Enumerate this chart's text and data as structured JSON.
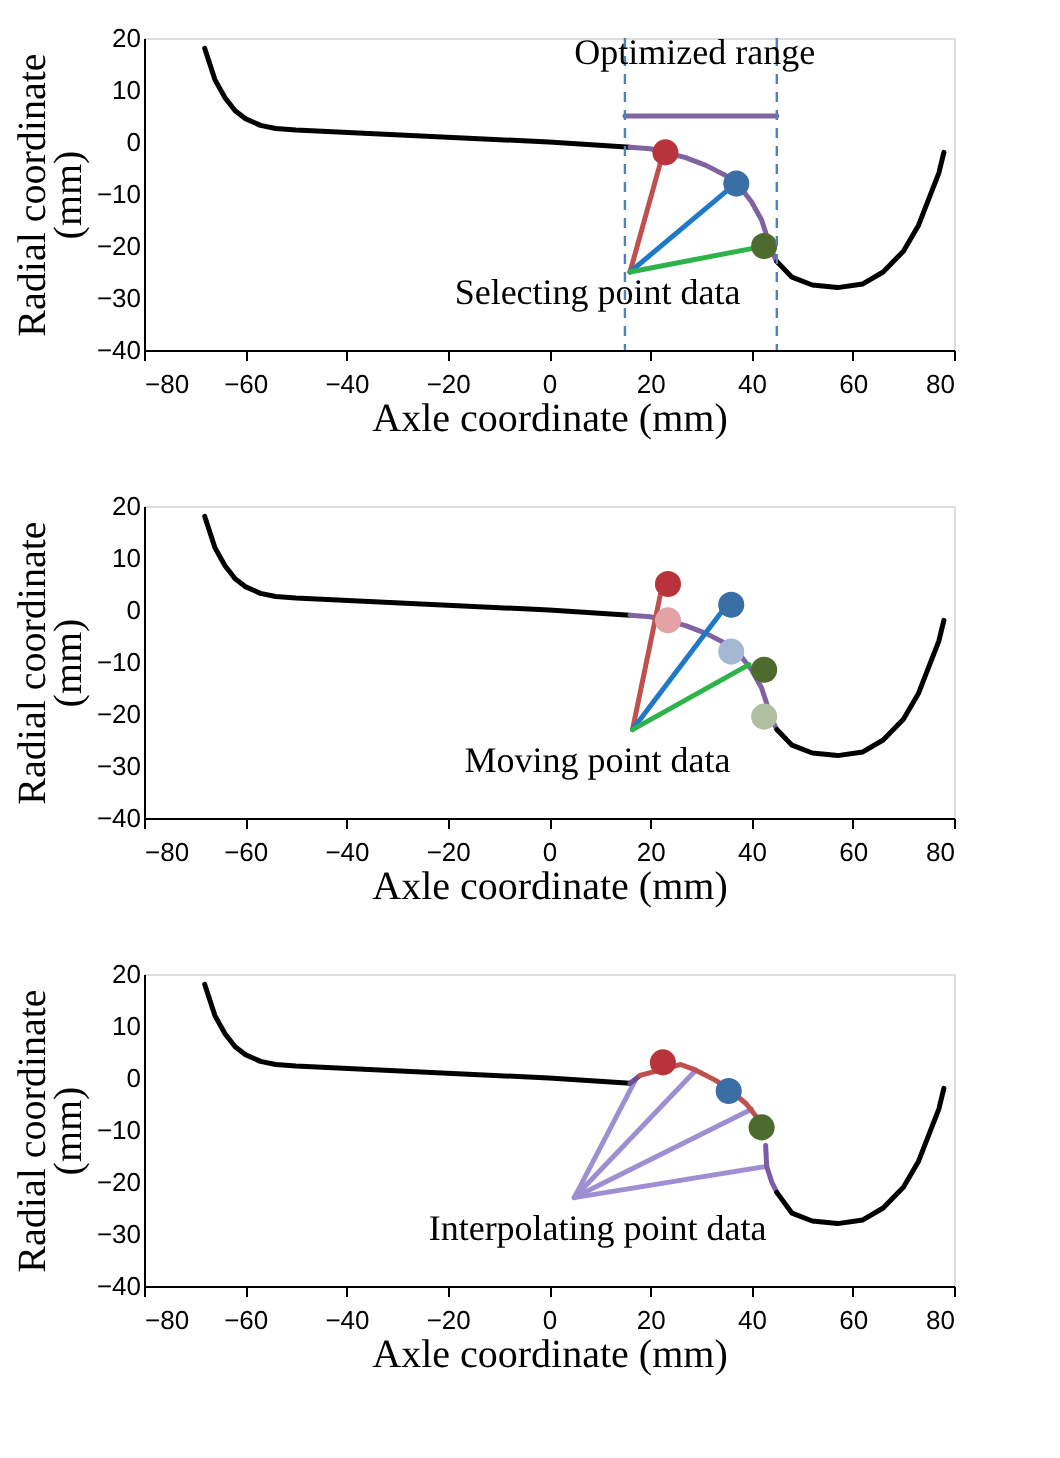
{
  "chart_data": [
    {
      "type": "line",
      "xlabel": "Axle coordinate (mm)",
      "ylabel": "Radial coordinate (mm)",
      "xlim": [
        -80,
        80
      ],
      "ylim": [
        -40,
        20
      ],
      "xticks": [
        -80,
        -60,
        -40,
        -20,
        0,
        20,
        40,
        60,
        80
      ],
      "yticks": [
        -40,
        -30,
        -20,
        -10,
        0,
        10,
        20
      ],
      "grid": false,
      "series": [
        {
          "color": "#000000",
          "x": [
            -68,
            -67,
            -66,
            -64,
            -62,
            -60,
            -57,
            -54,
            -50,
            0,
            16
          ],
          "values": [
            18,
            15,
            12,
            8.5,
            6,
            4.5,
            3.2,
            2.6,
            2.3,
            0,
            -1
          ]
        },
        {
          "color": "#8064a2",
          "x": [
            16,
            20,
            23,
            27,
            31,
            35,
            38,
            40,
            42,
            43,
            44,
            45
          ],
          "values": [
            -1,
            -1.3,
            -2,
            -3,
            -4.5,
            -6.5,
            -9,
            -11.5,
            -15,
            -18,
            -21,
            -23
          ]
        },
        {
          "color": "#000000",
          "x": [
            45,
            48,
            52,
            57,
            62,
            66,
            70,
            73,
            75,
            77,
            78
          ],
          "values": [
            -23,
            -26,
            -27.5,
            -28,
            -27.3,
            -25,
            -21,
            -16,
            -11,
            -6,
            -2
          ]
        },
        {
          "color": "#c0504d",
          "x": [
            22,
            16
          ],
          "values": [
            -4,
            -25
          ]
        },
        {
          "color": "#1f78c8",
          "x": [
            35,
            16
          ],
          "values": [
            -9.5,
            -25
          ]
        },
        {
          "color": "#2db34a",
          "x": [
            40,
            16
          ],
          "values": [
            -20.5,
            -25
          ]
        },
        {
          "color": "#8064a2",
          "x": [
            15,
            45
          ],
          "values": [
            5,
            5
          ]
        },
        {
          "type": "scatter",
          "marker": "circle",
          "color": "#b8333b",
          "x": [
            23
          ],
          "values": [
            -2
          ]
        },
        {
          "type": "scatter",
          "marker": "circle",
          "color": "#3a6ea5",
          "x": [
            37
          ],
          "values": [
            -8
          ]
        },
        {
          "type": "scatter",
          "marker": "circle",
          "color": "#4e6b2e",
          "x": [
            42.5
          ],
          "values": [
            -20
          ]
        }
      ],
      "ref_lines": [
        {
          "axis": "x",
          "value": 15,
          "color": "#4f81bd",
          "line_style": "dashed"
        },
        {
          "axis": "x",
          "value": 45,
          "color": "#4f81bd",
          "line_style": "dashed"
        }
      ],
      "annotations": [
        "Optimized range",
        "Selecting point data"
      ]
    },
    {
      "type": "line",
      "xlabel": "Axle coordinate (mm)",
      "ylabel": "Radial coordinate (mm)",
      "xlim": [
        -80,
        80
      ],
      "ylim": [
        -40,
        20
      ],
      "xticks": [
        -80,
        -60,
        -40,
        -20,
        0,
        20,
        40,
        60,
        80
      ],
      "yticks": [
        -40,
        -30,
        -20,
        -10,
        0,
        10,
        20
      ],
      "grid": false,
      "series": [
        {
          "color": "#000000",
          "x": [
            -68,
            -67,
            -66,
            -64,
            -62,
            -60,
            -57,
            -54,
            -50,
            0,
            16
          ],
          "values": [
            18,
            15,
            12,
            8.5,
            6,
            4.5,
            3.2,
            2.6,
            2.3,
            0,
            -1
          ]
        },
        {
          "color": "#8064a2",
          "x": [
            16,
            20,
            23,
            27,
            31,
            35,
            38,
            40,
            42,
            43,
            44,
            45
          ],
          "values": [
            -1,
            -1.3,
            -2,
            -3,
            -4.5,
            -6.5,
            -9,
            -11.5,
            -15,
            -18,
            -21,
            -23
          ]
        },
        {
          "color": "#000000",
          "x": [
            45,
            48,
            52,
            57,
            62,
            66,
            70,
            73,
            75,
            77,
            78
          ],
          "values": [
            -23,
            -26,
            -27.5,
            -28,
            -27.3,
            -25,
            -21,
            -16,
            -11,
            -6,
            -2
          ]
        },
        {
          "color": "#c0504d",
          "x": [
            22,
            16.5
          ],
          "values": [
            3,
            -23
          ]
        },
        {
          "color": "#1f78c8",
          "x": [
            34,
            16.5
          ],
          "values": [
            -0.5,
            -23
          ]
        },
        {
          "color": "#2db34a",
          "x": [
            39.5,
            16.5
          ],
          "values": [
            -10.5,
            -23
          ]
        },
        {
          "type": "scatter",
          "marker": "circle",
          "color": "#e3a3a6",
          "x": [
            23.5
          ],
          "values": [
            -2
          ]
        },
        {
          "type": "scatter",
          "marker": "circle",
          "color": "#a4b8d4",
          "x": [
            36
          ],
          "values": [
            -8
          ]
        },
        {
          "type": "scatter",
          "marker": "circle",
          "color": "#afbfa0",
          "x": [
            42.5
          ],
          "values": [
            -20.5
          ]
        },
        {
          "type": "scatter",
          "marker": "circle",
          "color": "#b8333b",
          "x": [
            23.5
          ],
          "values": [
            5
          ]
        },
        {
          "type": "scatter",
          "marker": "circle",
          "color": "#3a6ea5",
          "x": [
            36
          ],
          "values": [
            1
          ]
        },
        {
          "type": "scatter",
          "marker": "circle",
          "color": "#4e6b2e",
          "x": [
            42.5
          ],
          "values": [
            -11.5
          ]
        }
      ],
      "annotations": [
        "Moving point data"
      ]
    },
    {
      "type": "line",
      "xlabel": "Axle coordinate (mm)",
      "ylabel": "Radial coordinate (mm)",
      "xlim": [
        -80,
        80
      ],
      "ylim": [
        -40,
        20
      ],
      "xticks": [
        -80,
        -60,
        -40,
        -20,
        0,
        20,
        40,
        60,
        80
      ],
      "yticks": [
        -40,
        -30,
        -20,
        -10,
        0,
        10,
        20
      ],
      "grid": false,
      "series": [
        {
          "color": "#9d8fd1",
          "x": [
            17,
            5
          ],
          "values": [
            -0.5,
            -23
          ]
        },
        {
          "color": "#9d8fd1",
          "x": [
            29,
            5
          ],
          "values": [
            1.5,
            -23
          ]
        },
        {
          "color": "#9d8fd1",
          "x": [
            40,
            5
          ],
          "values": [
            -6,
            -23
          ]
        },
        {
          "color": "#9d8fd1",
          "x": [
            43,
            5
          ],
          "values": [
            -17,
            -23
          ]
        },
        {
          "color": "#000000",
          "x": [
            -68,
            -67,
            -66,
            -64,
            -62,
            -60,
            -57,
            -54,
            -50,
            0,
            16
          ],
          "values": [
            18,
            15,
            12,
            8.5,
            6,
            4.5,
            3.2,
            2.6,
            2.3,
            0,
            -1
          ]
        },
        {
          "color": "#6b4f96",
          "x": [
            16,
            18
          ],
          "values": [
            -1,
            0.5
          ]
        },
        {
          "color": "#c0504d",
          "x": [
            18,
            26,
            29,
            33,
            36,
            39,
            41,
            42.5
          ],
          "values": [
            0.5,
            2.6,
            1.5,
            -0.5,
            -2.5,
            -5,
            -7.5,
            -10
          ]
        },
        {
          "color": "#7a5ca8",
          "x": [
            42.8,
            43,
            44,
            45
          ],
          "values": [
            -13,
            -17,
            -20,
            -22
          ]
        },
        {
          "color": "#000000",
          "x": [
            45,
            48,
            52,
            57,
            62,
            66,
            70,
            73,
            75,
            77,
            78
          ],
          "values": [
            -22,
            -26,
            -27.5,
            -28,
            -27.3,
            -25,
            -21,
            -16,
            -11,
            -6,
            -2
          ]
        },
        {
          "type": "scatter",
          "marker": "circle",
          "color": "#b8333b",
          "x": [
            22.5
          ],
          "values": [
            3
          ]
        },
        {
          "type": "scatter",
          "marker": "circle",
          "color": "#3a6ea5",
          "x": [
            35.5
          ],
          "values": [
            -2.5
          ]
        },
        {
          "type": "scatter",
          "marker": "circle",
          "color": "#4e6b2e",
          "x": [
            42
          ],
          "values": [
            -9.5
          ]
        }
      ],
      "annotations": [
        "Interpolating point data"
      ]
    }
  ]
}
